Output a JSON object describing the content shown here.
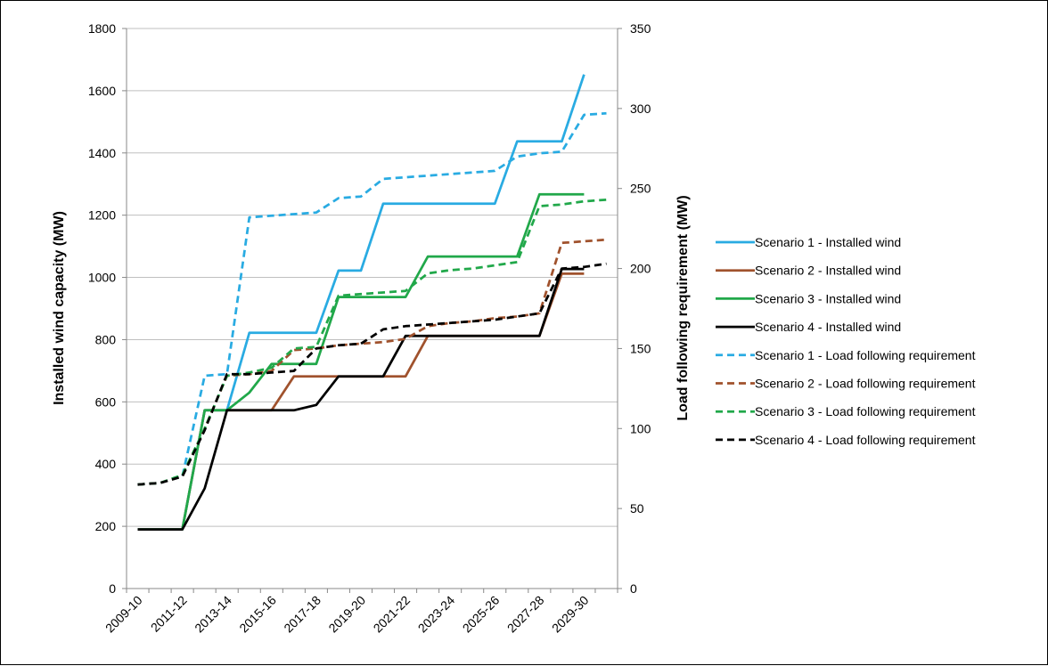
{
  "chart_data": {
    "type": "line",
    "title": "",
    "ylabel": "Installed wind capacity (MW)",
    "y2label": "Load following requirement (MW)",
    "ylim": [
      0,
      1800
    ],
    "y_ticks": [
      0,
      200,
      400,
      600,
      800,
      1000,
      1200,
      1400,
      1600,
      1800
    ],
    "y2lim": [
      0,
      350
    ],
    "y2_ticks": [
      0,
      50,
      100,
      150,
      200,
      250,
      300,
      350
    ],
    "grid": "horizontal",
    "legend_position": "right",
    "x_tick_labels": [
      "2009-10",
      "2011-12",
      "2013-14",
      "2015-16",
      "2017-18",
      "2019-20",
      "2021-22",
      "2023-24",
      "2025-26",
      "2027-28",
      "2029-30"
    ],
    "x_index_range": [
      0,
      22
    ],
    "series": [
      {
        "name": "Scenario 1 - Installed wind",
        "axis": "left",
        "color": "#29abe2",
        "dash": "solid",
        "points": [
          [
            0.5,
            190
          ],
          [
            1.5,
            190
          ],
          [
            2.5,
            190
          ],
          [
            3.5,
            573
          ],
          [
            4.5,
            573
          ],
          [
            5.5,
            822
          ],
          [
            6.5,
            822
          ],
          [
            7.5,
            822
          ],
          [
            8.5,
            822
          ],
          [
            9.5,
            1022
          ],
          [
            10.5,
            1022
          ],
          [
            11.5,
            1237
          ],
          [
            12.5,
            1237
          ],
          [
            13.5,
            1237
          ],
          [
            14.5,
            1237
          ],
          [
            15.5,
            1237
          ],
          [
            16.5,
            1237
          ],
          [
            17.5,
            1437
          ],
          [
            18.5,
            1437
          ],
          [
            19.5,
            1437
          ],
          [
            20.5,
            1652
          ]
        ]
      },
      {
        "name": "Scenario 2 - Installed wind",
        "axis": "left",
        "color": "#a0522d",
        "dash": "solid",
        "points": [
          [
            0.5,
            190
          ],
          [
            1.5,
            190
          ],
          [
            2.5,
            190
          ],
          [
            3.5,
            573
          ],
          [
            4.5,
            573
          ],
          [
            5.5,
            573
          ],
          [
            6.5,
            573
          ],
          [
            7.5,
            682
          ],
          [
            8.5,
            682
          ],
          [
            9.5,
            682
          ],
          [
            10.5,
            682
          ],
          [
            11.5,
            682
          ],
          [
            12.5,
            682
          ],
          [
            13.5,
            812
          ],
          [
            14.5,
            812
          ],
          [
            15.5,
            812
          ],
          [
            16.5,
            812
          ],
          [
            17.5,
            812
          ],
          [
            18.5,
            812
          ],
          [
            19.5,
            1012
          ],
          [
            20.5,
            1012
          ]
        ]
      },
      {
        "name": "Scenario 3 - Installed wind",
        "axis": "left",
        "color": "#21a84a",
        "dash": "solid",
        "points": [
          [
            0.5,
            190
          ],
          [
            1.5,
            190
          ],
          [
            2.5,
            190
          ],
          [
            3.5,
            573
          ],
          [
            4.5,
            573
          ],
          [
            5.5,
            630
          ],
          [
            6.5,
            722
          ],
          [
            7.5,
            722
          ],
          [
            8.5,
            722
          ],
          [
            9.5,
            937
          ],
          [
            10.5,
            937
          ],
          [
            11.5,
            937
          ],
          [
            12.5,
            937
          ],
          [
            13.5,
            1067
          ],
          [
            14.5,
            1067
          ],
          [
            15.5,
            1067
          ],
          [
            16.5,
            1067
          ],
          [
            17.5,
            1067
          ],
          [
            18.5,
            1267
          ],
          [
            19.5,
            1267
          ],
          [
            20.5,
            1267
          ]
        ]
      },
      {
        "name": "Scenario 4 - Installed wind",
        "axis": "left",
        "color": "#000000",
        "dash": "solid",
        "points": [
          [
            0.5,
            190
          ],
          [
            1.5,
            190
          ],
          [
            2.5,
            190
          ],
          [
            3.5,
            322
          ],
          [
            4.5,
            573
          ],
          [
            5.5,
            573
          ],
          [
            6.5,
            573
          ],
          [
            7.5,
            573
          ],
          [
            8.5,
            590
          ],
          [
            9.5,
            682
          ],
          [
            10.5,
            682
          ],
          [
            11.5,
            682
          ],
          [
            12.5,
            812
          ],
          [
            13.5,
            812
          ],
          [
            14.5,
            812
          ],
          [
            15.5,
            812
          ],
          [
            16.5,
            812
          ],
          [
            17.5,
            812
          ],
          [
            18.5,
            812
          ],
          [
            19.5,
            1027
          ],
          [
            20.5,
            1027
          ]
        ]
      },
      {
        "name": "Scenario 1 - Load following requirement",
        "axis": "right",
        "color": "#29abe2",
        "dash": "dashed",
        "points": [
          [
            0.5,
            65
          ],
          [
            1.5,
            66
          ],
          [
            2.5,
            70
          ],
          [
            3.5,
            133
          ],
          [
            4.5,
            134
          ],
          [
            5.5,
            232
          ],
          [
            6.5,
            233
          ],
          [
            7.5,
            234
          ],
          [
            8.5,
            235
          ],
          [
            9.5,
            244
          ],
          [
            10.5,
            245
          ],
          [
            11.5,
            256
          ],
          [
            12.5,
            257
          ],
          [
            13.5,
            258
          ],
          [
            14.5,
            259
          ],
          [
            15.5,
            260
          ],
          [
            16.5,
            261
          ],
          [
            17.5,
            270
          ],
          [
            18.5,
            272
          ],
          [
            19.5,
            273
          ],
          [
            20.5,
            296
          ],
          [
            21.5,
            297
          ]
        ]
      },
      {
        "name": "Scenario 2 - Load following requirement",
        "axis": "right",
        "color": "#a0522d",
        "dash": "dashed",
        "points": [
          [
            0.5,
            65
          ],
          [
            1.5,
            66
          ],
          [
            2.5,
            70
          ],
          [
            3.5,
            100
          ],
          [
            4.5,
            133
          ],
          [
            5.5,
            134
          ],
          [
            6.5,
            136
          ],
          [
            7.5,
            149
          ],
          [
            8.5,
            150
          ],
          [
            9.5,
            152
          ],
          [
            10.5,
            153
          ],
          [
            11.5,
            154
          ],
          [
            12.5,
            156
          ],
          [
            13.5,
            164
          ],
          [
            14.5,
            166
          ],
          [
            15.5,
            167
          ],
          [
            16.5,
            169
          ],
          [
            17.5,
            170
          ],
          [
            18.5,
            172
          ],
          [
            19.5,
            216
          ],
          [
            20.5,
            217
          ],
          [
            21.5,
            218
          ]
        ]
      },
      {
        "name": "Scenario 3 - Load following requirement",
        "axis": "right",
        "color": "#21a84a",
        "dash": "dashed",
        "points": [
          [
            0.5,
            65
          ],
          [
            1.5,
            66
          ],
          [
            2.5,
            71
          ],
          [
            3.5,
            100
          ],
          [
            4.5,
            133
          ],
          [
            5.5,
            135
          ],
          [
            6.5,
            138
          ],
          [
            7.5,
            150
          ],
          [
            8.5,
            151
          ],
          [
            9.5,
            183
          ],
          [
            10.5,
            184
          ],
          [
            11.5,
            185
          ],
          [
            12.5,
            186
          ],
          [
            13.5,
            197
          ],
          [
            14.5,
            199
          ],
          [
            15.5,
            200
          ],
          [
            16.5,
            202
          ],
          [
            17.5,
            204
          ],
          [
            18.5,
            239
          ],
          [
            19.5,
            240
          ],
          [
            20.5,
            242
          ],
          [
            21.5,
            243
          ]
        ]
      },
      {
        "name": "Scenario 4 - Load following requirement",
        "axis": "right",
        "color": "#000000",
        "dash": "dashed",
        "points": [
          [
            0.5,
            65
          ],
          [
            1.5,
            66
          ],
          [
            2.5,
            70
          ],
          [
            3.5,
            99
          ],
          [
            4.5,
            134
          ],
          [
            5.5,
            134
          ],
          [
            6.5,
            135
          ],
          [
            7.5,
            136
          ],
          [
            8.5,
            150
          ],
          [
            9.5,
            152
          ],
          [
            10.5,
            153
          ],
          [
            11.5,
            162
          ],
          [
            12.5,
            164
          ],
          [
            13.5,
            165
          ],
          [
            14.5,
            166
          ],
          [
            15.5,
            167
          ],
          [
            16.5,
            168
          ],
          [
            17.5,
            170
          ],
          [
            18.5,
            172
          ],
          [
            19.5,
            200
          ],
          [
            20.5,
            201
          ],
          [
            21.5,
            203
          ]
        ]
      }
    ]
  }
}
